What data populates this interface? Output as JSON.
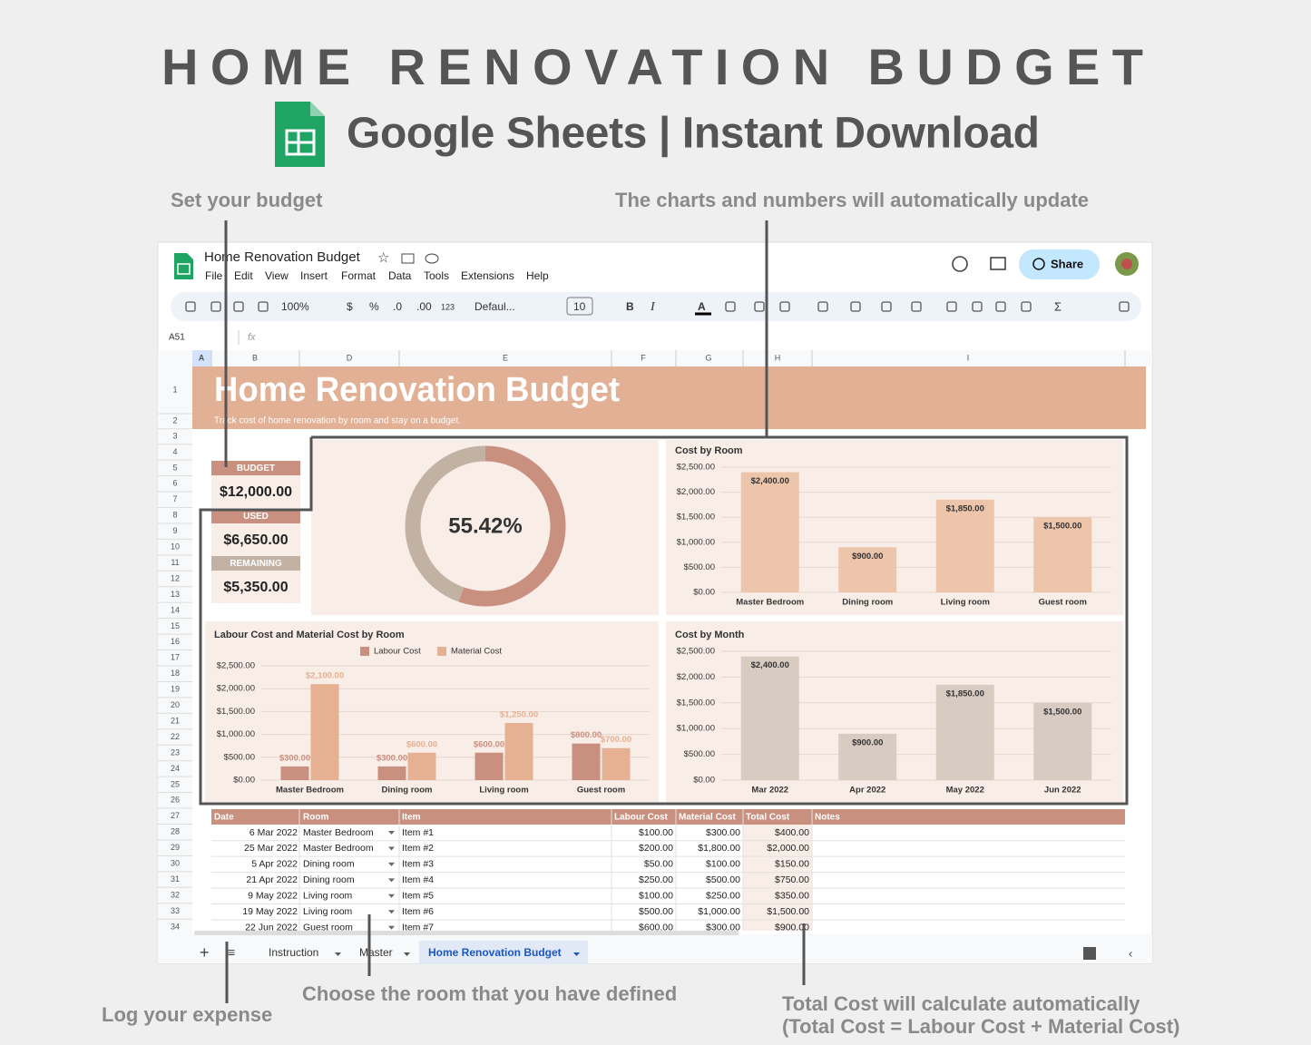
{
  "header": {
    "title": "HOME RENOVATION BUDGET",
    "subtitle": "Google Sheets | Instant Download"
  },
  "annotations": {
    "budget": "Set your budget",
    "charts": "The charts and numbers will automatically update",
    "expense": "Log your expense",
    "room": "Choose the room that you have defined",
    "total": [
      "Total Cost will calculate automatically",
      "(Total Cost = Labour Cost + Material Cost)"
    ]
  },
  "app": {
    "doc_title": "Home Renovation Budget",
    "menu": [
      "File",
      "Edit",
      "View",
      "Insert",
      "Format",
      "Data",
      "Tools",
      "Extensions",
      "Help"
    ],
    "share": "Share",
    "toolbar": [
      "100%",
      "$",
      "%",
      ".0",
      ".00",
      "123",
      "Defaul...",
      "10",
      "B",
      "I",
      "A",
      "Σ"
    ],
    "name_box": "A51",
    "fx": "fx",
    "columns": [
      "A",
      "B",
      "D",
      "E",
      "F",
      "G",
      "H",
      "I"
    ],
    "rows": [
      "1",
      "2",
      "3",
      "4",
      "5",
      "6",
      "7",
      "8",
      "9",
      "10",
      "11",
      "12",
      "13",
      "14",
      "15",
      "16",
      "17",
      "18",
      "19",
      "20",
      "21",
      "22",
      "23",
      "24",
      "25",
      "26",
      "27",
      "28",
      "29",
      "30",
      "31",
      "32",
      "33",
      "34"
    ],
    "tabs": [
      "Instruction",
      "Master",
      "Home Renovation Budget"
    ]
  },
  "sheet": {
    "title": "Home Renovation Budget",
    "subtitle": "Track cost of home renovation by room and stay on a budget."
  },
  "summary": [
    {
      "label": "BUDGET",
      "value": "$12,000.00"
    },
    {
      "label": "USED",
      "value": "$6,650.00"
    },
    {
      "label": "REMAINING",
      "value": "$5,350.00"
    }
  ],
  "chart_data": [
    {
      "type": "donut",
      "values": [
        55.42,
        44.58
      ],
      "value_labels": [
        "55.42%",
        null
      ],
      "colors": [
        "#c9907f",
        "#c2b2a3"
      ]
    },
    {
      "type": "bar",
      "title": "Cost by Room",
      "categories": [
        "Master Bedroom",
        "Dining room",
        "Living room",
        "Guest room"
      ],
      "values": [
        2400,
        900,
        1850,
        1500
      ],
      "value_labels": [
        "$2,400.00",
        "$900.00",
        "$1,850.00",
        "$1,500.00"
      ],
      "color": "#edc5ab",
      "ylim": [
        0,
        2500
      ],
      "yticks": [
        {
          "value": 0,
          "label": "$0.00"
        },
        {
          "value": 500,
          "label": "$500.00"
        },
        {
          "value": 1000,
          "label": "$1,000.00"
        },
        {
          "value": 1500,
          "label": "$1,500.00"
        },
        {
          "value": 2000,
          "label": "$2,000.00"
        },
        {
          "value": 2500,
          "label": "$2,500.00"
        }
      ],
      "grid": true
    },
    {
      "type": "bar",
      "title": "Labour Cost and Material Cost by Room",
      "categories": [
        "Master Bedroom",
        "Dining room",
        "Living room",
        "Guest room"
      ],
      "series": [
        {
          "name": "Labour Cost",
          "color": "#c9907f",
          "values": [
            300,
            300,
            600,
            800
          ],
          "value_labels": [
            "$300.00",
            "$300.00",
            "$600.00",
            "$800.00"
          ]
        },
        {
          "name": "Material Cost",
          "color": "#e6b092",
          "values": [
            2100,
            600,
            1250,
            700
          ],
          "value_labels": [
            "$2,100.00",
            "$600.00",
            "$1,250.00",
            "$700.00"
          ]
        }
      ],
      "ylim": [
        0,
        2500
      ],
      "yticks": [
        {
          "value": 0,
          "label": "$0.00"
        },
        {
          "value": 500,
          "label": "$500.00"
        },
        {
          "value": 1000,
          "label": "$1,000.00"
        },
        {
          "value": 1500,
          "label": "$1,500.00"
        },
        {
          "value": 2000,
          "label": "$2,000.00"
        },
        {
          "value": 2500,
          "label": "$2,500.00"
        }
      ],
      "grid": true,
      "legend": "top"
    },
    {
      "type": "bar",
      "title": "Cost by Month",
      "categories": [
        "Mar 2022",
        "Apr 2022",
        "May 2022",
        "Jun 2022"
      ],
      "values": [
        2400,
        900,
        1850,
        1500
      ],
      "value_labels": [
        "$2,400.00",
        "$900.00",
        "$1,850.00",
        "$1,500.00"
      ],
      "color": "#d8cbc2",
      "ylim": [
        0,
        2500
      ],
      "yticks": [
        {
          "value": 0,
          "label": "$0.00"
        },
        {
          "value": 500,
          "label": "$500.00"
        },
        {
          "value": 1000,
          "label": "$1,000.00"
        },
        {
          "value": 1500,
          "label": "$1,500.00"
        },
        {
          "value": 2000,
          "label": "$2,000.00"
        },
        {
          "value": 2500,
          "label": "$2,500.00"
        }
      ],
      "grid": true
    }
  ],
  "table": {
    "columns": [
      "Date",
      "Room",
      "Item",
      "Labour Cost",
      "Material Cost",
      "Total Cost",
      "Notes"
    ],
    "rows": [
      [
        "6 Mar 2022",
        "Master Bedroom",
        "Item #1",
        "$100.00",
        "$300.00",
        "$400.00"
      ],
      [
        "25 Mar 2022",
        "Master Bedroom",
        "Item #2",
        "$200.00",
        "$1,800.00",
        "$2,000.00"
      ],
      [
        "5 Apr 2022",
        "Dining room",
        "Item #3",
        "$50.00",
        "$100.00",
        "$150.00"
      ],
      [
        "21 Apr 2022",
        "Dining room",
        "Item #4",
        "$250.00",
        "$500.00",
        "$750.00"
      ],
      [
        "9 May 2022",
        "Living room",
        "Item #5",
        "$100.00",
        "$250.00",
        "$350.00"
      ],
      [
        "19 May 2022",
        "Living room",
        "Item #6",
        "$500.00",
        "$1,000.00",
        "$1,500.00"
      ],
      [
        "22 Jun 2022",
        "Guest room",
        "Item #7",
        "$600.00",
        "$300.00",
        "$900.00"
      ]
    ]
  }
}
